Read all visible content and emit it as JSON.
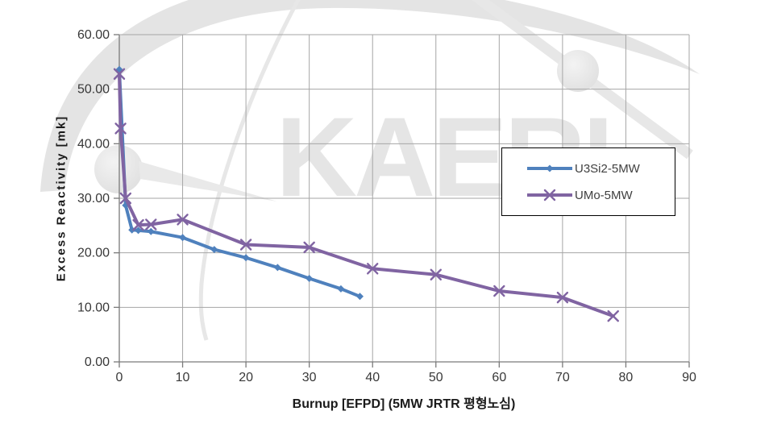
{
  "watermark": {
    "text": "KAERI"
  },
  "colors": {
    "gridline": "#a6a6a6",
    "axis": "#7a7a7a",
    "tick_label": "#383838",
    "watermark_gray": "#e5e5e5",
    "legend_border": "#000000",
    "background": "#ffffff"
  },
  "chart_data": {
    "type": "line",
    "title": "",
    "xlabel": "Burnup [EFPD] (5MW JRTR 평형노심)",
    "ylabel": "Excess Reactivity [mk]",
    "xlim": [
      0,
      90
    ],
    "ylim": [
      0,
      60
    ],
    "x_ticks": [
      0,
      10,
      20,
      30,
      40,
      50,
      60,
      70,
      80,
      90
    ],
    "y_ticks": [
      "0.00",
      "10.00",
      "20.00",
      "30.00",
      "40.00",
      "50.00",
      "60.00"
    ],
    "grid": true,
    "legend_position": "inside upper-right, framed box",
    "series": [
      {
        "name": "U3Si2-5MW",
        "color": "#4F81BD",
        "marker": "diamond",
        "points": [
          [
            0,
            53.6
          ],
          [
            1,
            28.7
          ],
          [
            2,
            24.2
          ],
          [
            3,
            24.1
          ],
          [
            5,
            23.9
          ],
          [
            10,
            22.8
          ],
          [
            15,
            20.6
          ],
          [
            20,
            19.1
          ],
          [
            25,
            17.3
          ],
          [
            30,
            15.3
          ],
          [
            35,
            13.4
          ],
          [
            38,
            12.0
          ]
        ]
      },
      {
        "name": "UMo-5MW",
        "color": "#8064A2",
        "marker": "x",
        "points": [
          [
            0,
            52.8
          ],
          [
            0.2,
            42.8
          ],
          [
            1,
            30.0
          ],
          [
            3,
            25.1
          ],
          [
            5,
            25.2
          ],
          [
            10,
            26.1
          ],
          [
            20,
            21.5
          ],
          [
            30,
            21.0
          ],
          [
            40,
            17.1
          ],
          [
            50,
            16.0
          ],
          [
            60,
            13.0
          ],
          [
            70,
            11.8
          ],
          [
            78,
            8.4
          ]
        ]
      }
    ]
  }
}
